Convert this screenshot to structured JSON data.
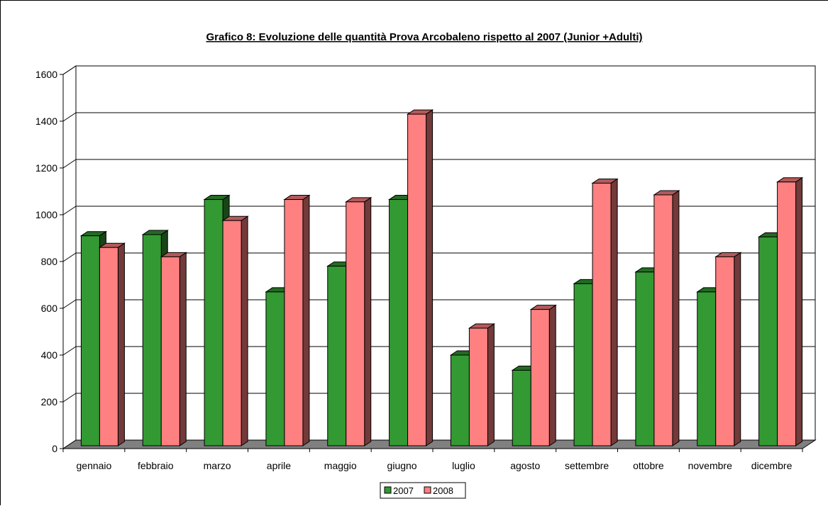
{
  "chart_data": {
    "type": "bar",
    "title": "Grafico 8: Evoluzione delle quantità Prova Arcobaleno rispetto al 2007 (Junior +Adulti)",
    "xlabel": "",
    "ylabel": "",
    "categories": [
      "gennaio",
      "febbraio",
      "marzo",
      "aprile",
      "maggio",
      "giugno",
      "luglio",
      "agosto",
      "settembre",
      "ottobre",
      "novembre",
      "dicembre"
    ],
    "series": [
      {
        "name": "2007",
        "color": "#339933",
        "values": [
          910,
          915,
          1065,
          670,
          780,
          1065,
          400,
          335,
          705,
          755,
          670,
          905
        ]
      },
      {
        "name": "2008",
        "color": "#FF8080",
        "values": [
          860,
          820,
          975,
          1065,
          1055,
          1430,
          515,
          595,
          1135,
          1085,
          820,
          1140
        ]
      }
    ],
    "yticks": [
      0,
      200,
      400,
      600,
      800,
      1000,
      1200,
      1400,
      1600
    ],
    "ylim": [
      0,
      1600
    ],
    "grid": true,
    "legend": "bottom-center"
  }
}
